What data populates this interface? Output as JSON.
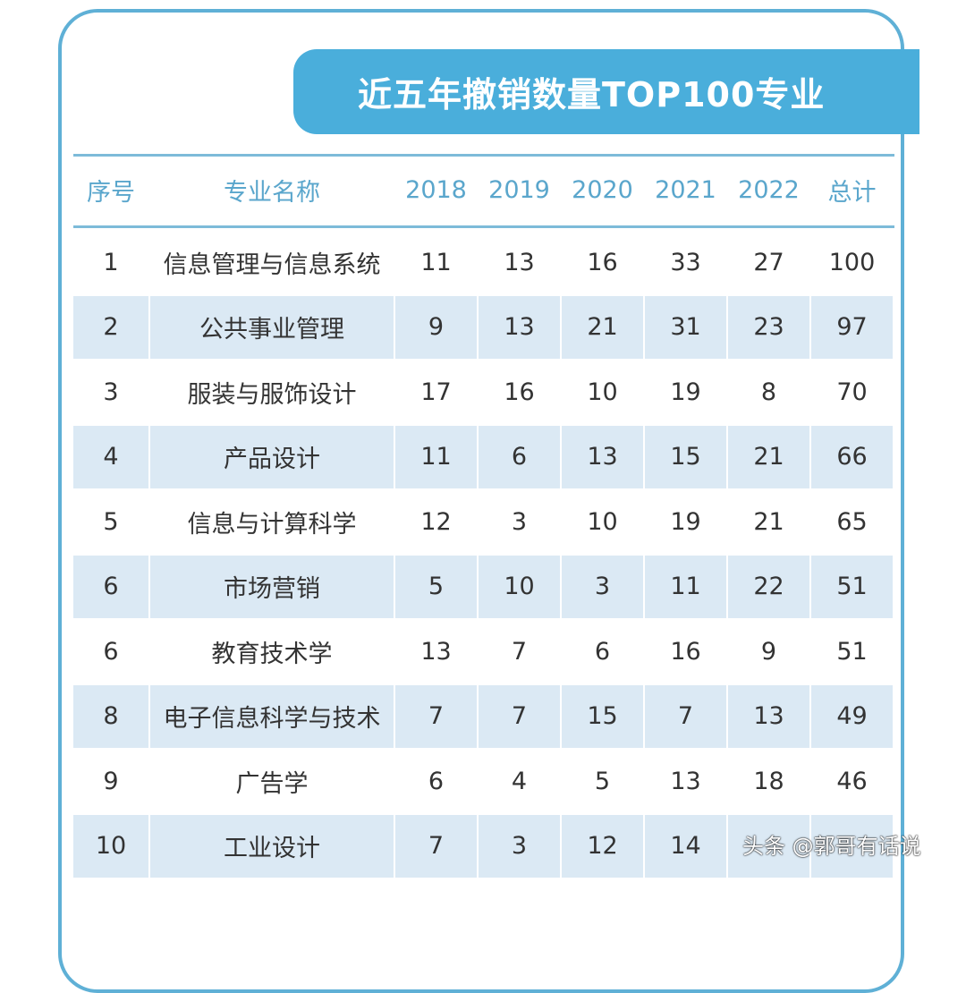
{
  "title": "近五年撤销数量TOP100专业",
  "headers": [
    "序号",
    "专业名称",
    "2018",
    "2019",
    "2020",
    "2021",
    "2022",
    "总计"
  ],
  "rows": [
    [
      "1",
      "信息管理与信息系统",
      "11",
      "13",
      "16",
      "33",
      "27",
      "100"
    ],
    [
      "2",
      "公共事业管理",
      "9",
      "13",
      "21",
      "31",
      "23",
      "97"
    ],
    [
      "3",
      "服装与服饰设计",
      "17",
      "16",
      "10",
      "19",
      "8",
      "70"
    ],
    [
      "4",
      "产品设计",
      "11",
      "6",
      "13",
      "15",
      "21",
      "66"
    ],
    [
      "5",
      "信息与计算科学",
      "12",
      "3",
      "10",
      "19",
      "21",
      "65"
    ],
    [
      "6",
      "市场营销",
      "5",
      "10",
      "3",
      "11",
      "22",
      "51"
    ],
    [
      "6",
      "教育技术学",
      "13",
      "7",
      "6",
      "16",
      "9",
      "51"
    ],
    [
      "8",
      "电子信息科学与技术",
      "7",
      "7",
      "15",
      "7",
      "13",
      "49"
    ],
    [
      "9",
      "广告学",
      "6",
      "4",
      "5",
      "13",
      "18",
      "46"
    ],
    [
      "10",
      "工业设计",
      "7",
      "3",
      "12",
      "14",
      "",
      ""
    ]
  ],
  "watermark": "头条 @郭哥有话说",
  "colors": {
    "accent": "#4aaedb",
    "header_text": "#5aa6cc",
    "alt_row": "#dbe9f4"
  }
}
